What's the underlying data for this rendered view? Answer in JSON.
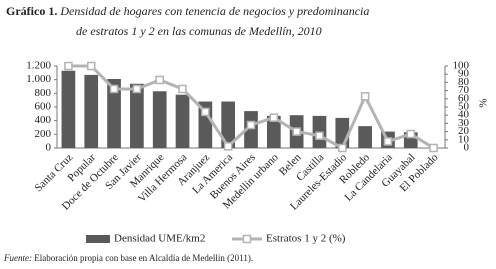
{
  "chart_data": {
    "type": "bar_line",
    "title": {
      "label": "Gráfico 1.",
      "lines": [
        "Densidad de hogares con tenencia de negocios y predominancia",
        "de estratos 1 y 2 en las comunas  de Medellín, 2010"
      ]
    },
    "categories": [
      "Santa Cruz",
      "Popular",
      "Doce de Octubre",
      "San Javier",
      "Manrique",
      "Villa Hermosa",
      "Aranjuez",
      "La America",
      "Buenos Aires",
      "Medellin urbano",
      "Belen",
      "Castilla",
      "Laureles-Estadio",
      "Robledo",
      "La Candelaria",
      "Guayabal",
      "El Poblado"
    ],
    "series": [
      {
        "name": "Densidad UME/km2",
        "type": "bar",
        "color": "#5a5a5a",
        "values": [
          1130,
          1070,
          1010,
          940,
          830,
          780,
          680,
          680,
          540,
          470,
          480,
          470,
          440,
          320,
          240,
          230,
          0
        ]
      },
      {
        "name": "Estratos 1 y 2 (%)",
        "type": "line",
        "axis": "y2",
        "color": "#b3b3b3",
        "values": [
          100,
          100,
          72,
          72,
          83,
          72,
          44,
          2,
          28,
          37,
          20,
          15,
          0,
          63,
          8,
          17,
          0
        ]
      }
    ],
    "ylim": [
      0,
      1200
    ],
    "yticks": [
      0,
      200,
      400,
      600,
      800,
      {
        "value": 1000,
        "label": "1.000"
      },
      {
        "value": 1200,
        "label": "1.200"
      }
    ],
    "y2lim": [
      0,
      100
    ],
    "y2ticks": [
      0,
      10,
      20,
      30,
      40,
      50,
      60,
      70,
      80,
      90,
      100
    ],
    "y2label": "%",
    "source": {
      "label": "Fuente:",
      "text": "Elaboración propia con base en Alcaldía de Medellín (2011)."
    }
  }
}
